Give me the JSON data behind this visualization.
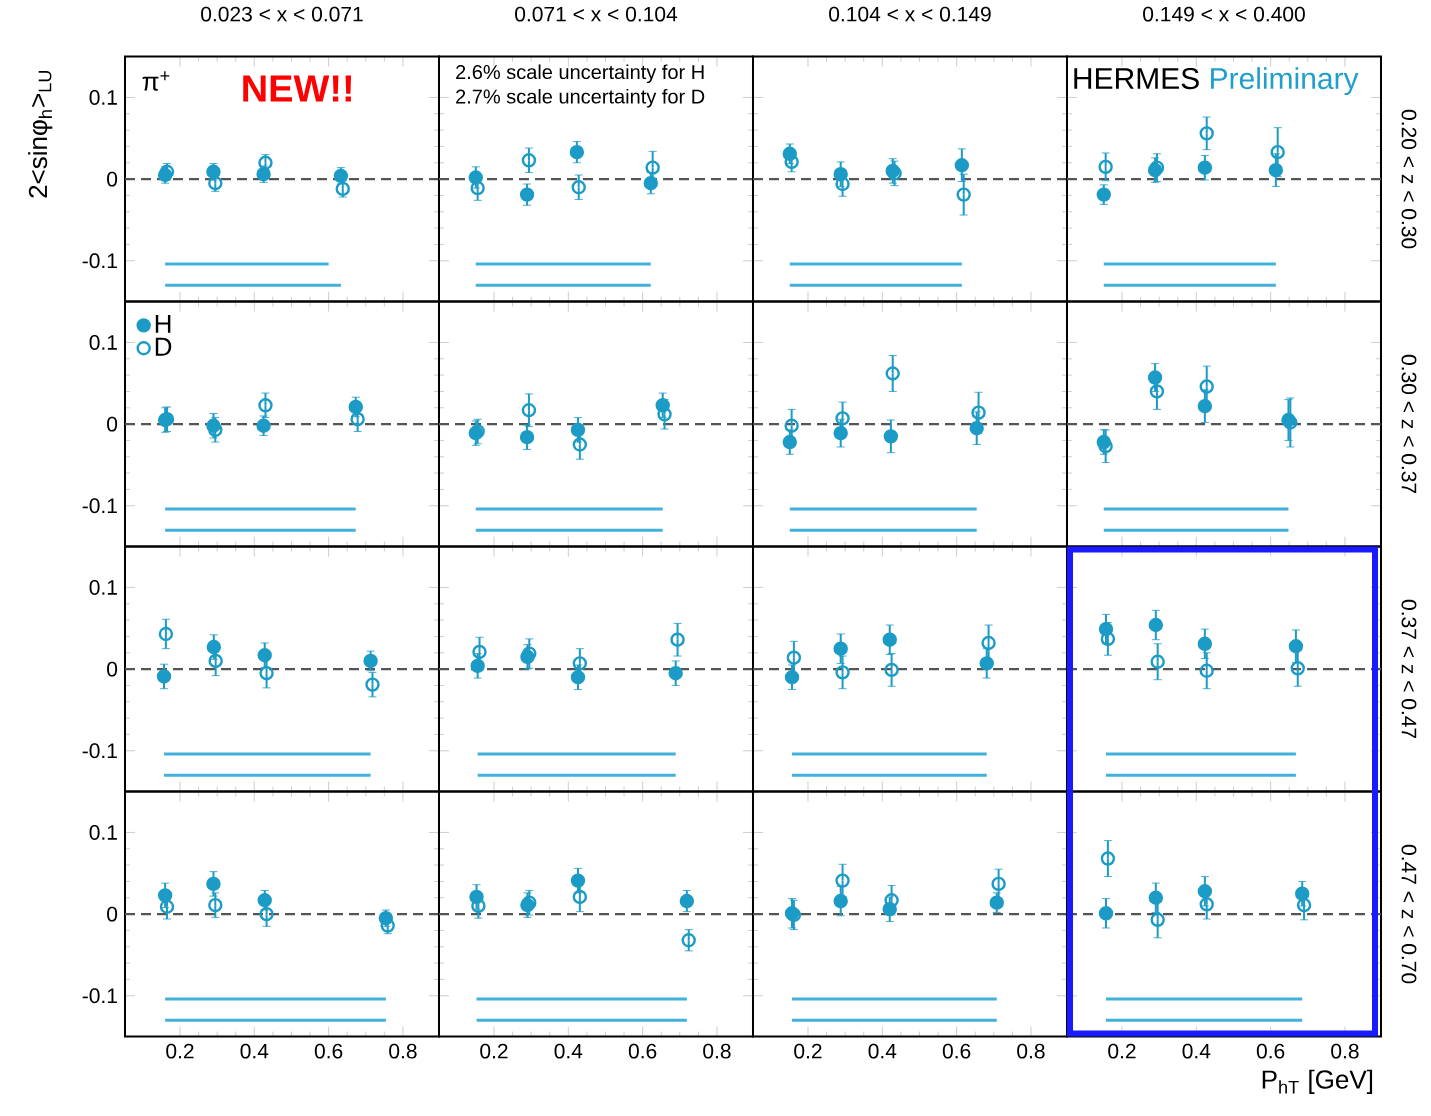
{
  "chart_data": [
    {
      "type": "scatter",
      "title": "0.023  <  x <  0.071",
      "ylabel": "2<sinφ$_{h}$>$_{LU}$",
      "annotations": [
        "π$^{+}$",
        "NEW!!"
      ],
      "xlim": [
        0.052,
        0.897
      ],
      "ylim": [
        -0.15,
        0.15
      ],
      "xticks": [
        0.2,
        0.4,
        0.6,
        0.8
      ],
      "yticks": [
        -0.1,
        0,
        0.1
      ],
      "tick_labels": "y",
      "ref_lines": [
        {
          "axis": "y",
          "value": 0,
          "color": "#555555",
          "line_style": "dashed"
        }
      ],
      "series": [
        {
          "type": "scatter",
          "marker": "circle",
          "color": "#1b9bc5",
          "x": [
            0.16,
            0.29,
            0.425,
            0.633
          ],
          "values": [
            0.005,
            0.009,
            0.006,
            0.004
          ],
          "errors": [
            0.01,
            0.01,
            0.01,
            0.01
          ]
        },
        {
          "type": "scatter",
          "marker": "circle",
          "color": "#1b9bc5",
          "x": [
            0.165,
            0.295,
            0.43,
            0.638
          ],
          "values": [
            0.009,
            -0.005,
            0.02,
            -0.012
          ],
          "errors": [
            0.01,
            0.01,
            0.01,
            0.01
          ]
        },
        {
          "type": "line",
          "color": "#41b0da",
          "x": [
            0.16,
            0.6
          ],
          "values": [
            -0.104,
            -0.104
          ]
        },
        {
          "type": "line",
          "color": "#41b0da",
          "x": [
            0.16,
            0.633
          ],
          "values": [
            -0.13,
            -0.13
          ]
        }
      ]
    },
    {
      "type": "scatter",
      "title": "0.071  <  x  <  0.104",
      "annotations": [
        "2.6% scale uncertainty for H",
        "2.7% scale uncertainty for D"
      ],
      "xlim": [
        0.052,
        0.897
      ],
      "ylim": [
        -0.15,
        0.15
      ],
      "xticks": [
        0.2,
        0.4,
        0.6,
        0.8
      ],
      "yticks": [
        -0.1,
        0,
        0.1
      ],
      "tick_labels": false,
      "ref_lines": [
        {
          "axis": "y",
          "value": 0,
          "color": "#555555",
          "line_style": "dashed"
        }
      ],
      "series": [
        {
          "type": "scatter",
          "marker": "circle",
          "color": "#1b9bc5",
          "x": [
            0.151,
            0.289,
            0.423,
            0.622
          ],
          "values": [
            0.002,
            -0.019,
            0.033,
            -0.005
          ],
          "errors": [
            0.013,
            0.013,
            0.013,
            0.013
          ]
        },
        {
          "type": "scatter",
          "marker": "circle",
          "color": "#1b9bc5",
          "x": [
            0.156,
            0.294,
            0.428,
            0.627
          ],
          "values": [
            -0.011,
            0.023,
            -0.01,
            0.014
          ],
          "errors": [
            0.015,
            0.015,
            0.015,
            0.02
          ]
        },
        {
          "type": "line",
          "color": "#41b0da",
          "x": [
            0.151,
            0.622
          ],
          "values": [
            -0.104,
            -0.104
          ]
        },
        {
          "type": "line",
          "color": "#41b0da",
          "x": [
            0.151,
            0.622
          ],
          "values": [
            -0.13,
            -0.13
          ]
        }
      ]
    },
    {
      "type": "scatter",
      "title": "0.104  <  x  <  0.149",
      "xlim": [
        0.052,
        0.897
      ],
      "ylim": [
        -0.15,
        0.15
      ],
      "xticks": [
        0.2,
        0.4,
        0.6,
        0.8
      ],
      "yticks": [
        -0.1,
        0,
        0.1
      ],
      "tick_labels": false,
      "ref_lines": [
        {
          "axis": "y",
          "value": 0,
          "color": "#555555",
          "line_style": "dashed"
        }
      ],
      "series": [
        {
          "type": "scatter",
          "marker": "circle",
          "color": "#1b9bc5",
          "x": [
            0.151,
            0.288,
            0.428,
            0.614
          ],
          "values": [
            0.031,
            0.006,
            0.01,
            0.017
          ],
          "errors": [
            0.012,
            0.015,
            0.015,
            0.02
          ]
        },
        {
          "type": "scatter",
          "marker": "circle",
          "color": "#1b9bc5",
          "x": [
            0.156,
            0.293,
            0.433,
            0.619
          ],
          "values": [
            0.021,
            -0.006,
            0.007,
            -0.019
          ],
          "errors": [
            0.012,
            0.015,
            0.015,
            0.025
          ]
        },
        {
          "type": "line",
          "color": "#41b0da",
          "x": [
            0.151,
            0.614
          ],
          "values": [
            -0.104,
            -0.104
          ]
        },
        {
          "type": "line",
          "color": "#41b0da",
          "x": [
            0.151,
            0.614
          ],
          "values": [
            -0.13,
            -0.13
          ]
        }
      ]
    },
    {
      "type": "scatter",
      "title": "0.149  <  x  <  0.400",
      "y2label": "0.20  <  z  <  0.30",
      "annotations": [
        "HERMES",
        "Preliminary"
      ],
      "xlim": [
        0.052,
        0.897
      ],
      "ylim": [
        -0.15,
        0.15
      ],
      "xticks": [
        0.2,
        0.4,
        0.6,
        0.8
      ],
      "yticks": [
        -0.1,
        0,
        0.1
      ],
      "tick_labels": false,
      "ref_lines": [
        {
          "axis": "y",
          "value": 0,
          "color": "#555555",
          "line_style": "dashed"
        }
      ],
      "series": [
        {
          "type": "scatter",
          "marker": "circle",
          "color": "#1b9bc5",
          "x": [
            0.151,
            0.289,
            0.423,
            0.614
          ],
          "values": [
            -0.019,
            0.011,
            0.014,
            0.011
          ],
          "errors": [
            0.012,
            0.015,
            0.015,
            0.02
          ]
        },
        {
          "type": "scatter",
          "marker": "circle",
          "color": "#1b9bc5",
          "x": [
            0.156,
            0.294,
            0.428,
            0.619
          ],
          "values": [
            0.015,
            0.014,
            0.056,
            0.033
          ],
          "errors": [
            0.017,
            0.017,
            0.02,
            0.03
          ]
        },
        {
          "type": "line",
          "color": "#41b0da",
          "x": [
            0.151,
            0.614
          ],
          "values": [
            -0.104,
            -0.104
          ]
        },
        {
          "type": "line",
          "color": "#41b0da",
          "x": [
            0.151,
            0.614
          ],
          "values": [
            -0.13,
            -0.13
          ]
        }
      ]
    },
    {
      "type": "scatter",
      "legend": "top left",
      "xlim": [
        0.052,
        0.897
      ],
      "ylim": [
        -0.15,
        0.15
      ],
      "xticks": [
        0.2,
        0.4,
        0.6,
        0.8
      ],
      "yticks": [
        -0.1,
        0,
        0.1
      ],
      "tick_labels": "y",
      "ref_lines": [
        {
          "axis": "y",
          "value": 0,
          "color": "#555555",
          "line_style": "dashed"
        }
      ],
      "series": [
        {
          "name": "H",
          "type": "scatter",
          "marker": "circle",
          "color": "#1b9bc5",
          "x": [
            0.16,
            0.29,
            0.425,
            0.673
          ],
          "values": [
            0.005,
            -0.002,
            -0.002,
            0.021
          ],
          "errors": [
            0.015,
            0.015,
            0.012,
            0.012
          ]
        },
        {
          "name": "D",
          "type": "scatter",
          "marker": "circle",
          "color": "#1b9bc5",
          "x": [
            0.165,
            0.295,
            0.43,
            0.678
          ],
          "values": [
            0.006,
            -0.007,
            0.023,
            0.006
          ],
          "errors": [
            0.015,
            0.015,
            0.015,
            0.015
          ]
        },
        {
          "type": "line",
          "color": "#41b0da",
          "x": [
            0.16,
            0.673
          ],
          "values": [
            -0.104,
            -0.104
          ]
        },
        {
          "type": "line",
          "color": "#41b0da",
          "x": [
            0.16,
            0.673
          ],
          "values": [
            -0.13,
            -0.13
          ]
        }
      ]
    },
    {
      "type": "scatter",
      "xlim": [
        0.052,
        0.897
      ],
      "ylim": [
        -0.15,
        0.15
      ],
      "xticks": [
        0.2,
        0.4,
        0.6,
        0.8
      ],
      "yticks": [
        -0.1,
        0,
        0.1
      ],
      "tick_labels": false,
      "ref_lines": [
        {
          "axis": "y",
          "value": 0,
          "color": "#555555",
          "line_style": "dashed"
        }
      ],
      "series": [
        {
          "type": "scatter",
          "marker": "circle",
          "color": "#1b9bc5",
          "x": [
            0.151,
            0.289,
            0.426,
            0.654
          ],
          "values": [
            -0.011,
            -0.016,
            -0.007,
            0.023
          ],
          "errors": [
            0.015,
            0.015,
            0.015,
            0.015
          ]
        },
        {
          "type": "scatter",
          "marker": "circle",
          "color": "#1b9bc5",
          "x": [
            0.156,
            0.294,
            0.431,
            0.659
          ],
          "values": [
            -0.009,
            0.017,
            -0.025,
            0.012
          ],
          "errors": [
            0.015,
            0.02,
            0.018,
            0.018
          ]
        },
        {
          "type": "line",
          "color": "#41b0da",
          "x": [
            0.151,
            0.654
          ],
          "values": [
            -0.104,
            -0.104
          ]
        },
        {
          "type": "line",
          "color": "#41b0da",
          "x": [
            0.151,
            0.654
          ],
          "values": [
            -0.13,
            -0.13
          ]
        }
      ]
    },
    {
      "type": "scatter",
      "xlim": [
        0.052,
        0.897
      ],
      "ylim": [
        -0.15,
        0.15
      ],
      "xticks": [
        0.2,
        0.4,
        0.6,
        0.8
      ],
      "yticks": [
        -0.1,
        0,
        0.1
      ],
      "tick_labels": false,
      "ref_lines": [
        {
          "axis": "y",
          "value": 0,
          "color": "#555555",
          "line_style": "dashed"
        }
      ],
      "series": [
        {
          "type": "scatter",
          "marker": "circle",
          "color": "#1b9bc5",
          "x": [
            0.151,
            0.288,
            0.423,
            0.654
          ],
          "values": [
            -0.022,
            -0.011,
            -0.015,
            -0.005
          ],
          "errors": [
            0.015,
            0.017,
            0.02,
            0.02
          ]
        },
        {
          "type": "scatter",
          "marker": "circle",
          "color": "#1b9bc5",
          "x": [
            0.156,
            0.293,
            0.428,
            0.659
          ],
          "values": [
            -0.002,
            0.007,
            0.062,
            0.014
          ],
          "errors": [
            0.02,
            0.02,
            0.022,
            0.025
          ]
        },
        {
          "type": "line",
          "color": "#41b0da",
          "x": [
            0.151,
            0.654
          ],
          "values": [
            -0.104,
            -0.104
          ]
        },
        {
          "type": "line",
          "color": "#41b0da",
          "x": [
            0.151,
            0.654
          ],
          "values": [
            -0.13,
            -0.13
          ]
        }
      ]
    },
    {
      "type": "scatter",
      "y2label": "0.30  <  z  <  0.37",
      "xlim": [
        0.052,
        0.897
      ],
      "ylim": [
        -0.15,
        0.15
      ],
      "xticks": [
        0.2,
        0.4,
        0.6,
        0.8
      ],
      "yticks": [
        -0.1,
        0,
        0.1
      ],
      "tick_labels": false,
      "ref_lines": [
        {
          "axis": "y",
          "value": 0,
          "color": "#555555",
          "line_style": "dashed"
        }
      ],
      "series": [
        {
          "type": "scatter",
          "marker": "circle",
          "color": "#1b9bc5",
          "x": [
            0.151,
            0.289,
            0.423,
            0.648
          ],
          "values": [
            -0.022,
            0.057,
            0.022,
            0.005
          ],
          "errors": [
            0.015,
            0.017,
            0.02,
            0.025
          ]
        },
        {
          "type": "scatter",
          "marker": "circle",
          "color": "#1b9bc5",
          "x": [
            0.156,
            0.294,
            0.428,
            0.653
          ],
          "values": [
            -0.027,
            0.04,
            0.046,
            0.002
          ],
          "errors": [
            0.02,
            0.022,
            0.025,
            0.03
          ]
        },
        {
          "type": "line",
          "color": "#41b0da",
          "x": [
            0.151,
            0.648
          ],
          "values": [
            -0.104,
            -0.104
          ]
        },
        {
          "type": "line",
          "color": "#41b0da",
          "x": [
            0.151,
            0.648
          ],
          "values": [
            -0.13,
            -0.13
          ]
        }
      ]
    },
    {
      "type": "scatter",
      "xlim": [
        0.052,
        0.897
      ],
      "ylim": [
        -0.15,
        0.15
      ],
      "xticks": [
        0.2,
        0.4,
        0.6,
        0.8
      ],
      "yticks": [
        -0.1,
        0,
        0.1
      ],
      "tick_labels": "y",
      "ref_lines": [
        {
          "axis": "y",
          "value": 0,
          "color": "#555555",
          "line_style": "dashed"
        }
      ],
      "series": [
        {
          "type": "scatter",
          "marker": "circle",
          "color": "#1b9bc5",
          "x": [
            0.157,
            0.291,
            0.428,
            0.713
          ],
          "values": [
            -0.009,
            0.027,
            0.017,
            0.01
          ],
          "errors": [
            0.015,
            0.015,
            0.015,
            0.012
          ]
        },
        {
          "type": "scatter",
          "marker": "circle",
          "color": "#1b9bc5",
          "x": [
            0.162,
            0.296,
            0.433,
            0.718
          ],
          "values": [
            0.043,
            0.01,
            -0.005,
            -0.019
          ],
          "errors": [
            0.018,
            0.018,
            0.018,
            0.015
          ]
        },
        {
          "type": "line",
          "color": "#41b0da",
          "x": [
            0.157,
            0.713
          ],
          "values": [
            -0.104,
            -0.104
          ]
        },
        {
          "type": "line",
          "color": "#41b0da",
          "x": [
            0.157,
            0.713
          ],
          "values": [
            -0.13,
            -0.13
          ]
        }
      ]
    },
    {
      "type": "scatter",
      "xlim": [
        0.052,
        0.897
      ],
      "ylim": [
        -0.15,
        0.15
      ],
      "xticks": [
        0.2,
        0.4,
        0.6,
        0.8
      ],
      "yticks": [
        -0.1,
        0,
        0.1
      ],
      "tick_labels": false,
      "ref_lines": [
        {
          "axis": "y",
          "value": 0,
          "color": "#555555",
          "line_style": "dashed"
        }
      ],
      "series": [
        {
          "type": "scatter",
          "marker": "circle",
          "color": "#1b9bc5",
          "x": [
            0.156,
            0.29,
            0.426,
            0.689
          ],
          "values": [
            0.004,
            0.015,
            -0.01,
            -0.005
          ],
          "errors": [
            0.015,
            0.015,
            0.015,
            0.015
          ]
        },
        {
          "type": "scatter",
          "marker": "circle",
          "color": "#1b9bc5",
          "x": [
            0.161,
            0.295,
            0.431,
            0.694
          ],
          "values": [
            0.021,
            0.019,
            0.007,
            0.036
          ],
          "errors": [
            0.018,
            0.018,
            0.018,
            0.02
          ]
        },
        {
          "type": "line",
          "color": "#41b0da",
          "x": [
            0.156,
            0.689
          ],
          "values": [
            -0.104,
            -0.104
          ]
        },
        {
          "type": "line",
          "color": "#41b0da",
          "x": [
            0.156,
            0.689
          ],
          "values": [
            -0.13,
            -0.13
          ]
        }
      ]
    },
    {
      "type": "scatter",
      "xlim": [
        0.052,
        0.897
      ],
      "ylim": [
        -0.15,
        0.15
      ],
      "xticks": [
        0.2,
        0.4,
        0.6,
        0.8
      ],
      "yticks": [
        -0.1,
        0,
        0.1
      ],
      "tick_labels": false,
      "ref_lines": [
        {
          "axis": "y",
          "value": 0,
          "color": "#555555",
          "line_style": "dashed"
        }
      ],
      "series": [
        {
          "type": "scatter",
          "marker": "circle",
          "color": "#1b9bc5",
          "x": [
            0.157,
            0.288,
            0.42,
            0.681
          ],
          "values": [
            -0.01,
            0.025,
            0.036,
            0.007
          ],
          "errors": [
            0.015,
            0.018,
            0.018,
            0.018
          ]
        },
        {
          "type": "scatter",
          "marker": "circle",
          "color": "#1b9bc5",
          "x": [
            0.162,
            0.293,
            0.425,
            0.686
          ],
          "values": [
            0.014,
            -0.004,
            -0.001,
            0.032
          ],
          "errors": [
            0.02,
            0.02,
            0.02,
            0.022
          ]
        },
        {
          "type": "line",
          "color": "#41b0da",
          "x": [
            0.157,
            0.681
          ],
          "values": [
            -0.104,
            -0.104
          ]
        },
        {
          "type": "line",
          "color": "#41b0da",
          "x": [
            0.157,
            0.681
          ],
          "values": [
            -0.13,
            -0.13
          ]
        }
      ]
    },
    {
      "type": "scatter",
      "y2label": "0.37  <  z  <  0.47",
      "xlim": [
        0.052,
        0.897
      ],
      "ylim": [
        -0.15,
        0.15
      ],
      "xticks": [
        0.2,
        0.4,
        0.6,
        0.8
      ],
      "yticks": [
        -0.1,
        0,
        0.1
      ],
      "tick_labels": false,
      "ref_lines": [
        {
          "axis": "y",
          "value": 0,
          "color": "#555555",
          "line_style": "dashed"
        }
      ],
      "series": [
        {
          "type": "scatter",
          "marker": "circle",
          "color": "#1b9bc5",
          "x": [
            0.157,
            0.291,
            0.423,
            0.668
          ],
          "values": [
            0.049,
            0.054,
            0.031,
            0.028
          ],
          "errors": [
            0.018,
            0.018,
            0.018,
            0.02
          ]
        },
        {
          "type": "scatter",
          "marker": "circle",
          "color": "#1b9bc5",
          "x": [
            0.162,
            0.296,
            0.428,
            0.673
          ],
          "values": [
            0.037,
            0.009,
            -0.002,
            0.001
          ],
          "errors": [
            0.02,
            0.022,
            0.022,
            0.022
          ]
        },
        {
          "type": "line",
          "color": "#41b0da",
          "x": [
            0.157,
            0.668
          ],
          "values": [
            -0.104,
            -0.104
          ]
        },
        {
          "type": "line",
          "color": "#41b0da",
          "x": [
            0.157,
            0.668
          ],
          "values": [
            -0.13,
            -0.13
          ]
        }
      ]
    },
    {
      "type": "scatter",
      "xlim": [
        0.052,
        0.897
      ],
      "ylim": [
        -0.15,
        0.15
      ],
      "xticks": [
        0.2,
        0.4,
        0.6,
        0.8
      ],
      "yticks": [
        -0.1,
        0,
        0.1
      ],
      "ref_lines": [
        {
          "axis": "y",
          "value": 0,
          "color": "#555555",
          "line_style": "dashed"
        }
      ],
      "series": [
        {
          "type": "scatter",
          "marker": "circle",
          "color": "#1b9bc5",
          "x": [
            0.16,
            0.29,
            0.428,
            0.754
          ],
          "values": [
            0.023,
            0.037,
            0.017,
            -0.005
          ],
          "errors": [
            0.015,
            0.015,
            0.012,
            0.01
          ]
        },
        {
          "type": "scatter",
          "marker": "circle",
          "color": "#1b9bc5",
          "x": [
            0.165,
            0.295,
            0.433,
            0.759
          ],
          "values": [
            0.009,
            0.011,
            0,
            -0.014
          ],
          "errors": [
            0.015,
            0.015,
            0.015,
            0.01
          ]
        },
        {
          "type": "line",
          "color": "#41b0da",
          "x": [
            0.16,
            0.754
          ],
          "values": [
            -0.104,
            -0.104
          ]
        },
        {
          "type": "line",
          "color": "#41b0da",
          "x": [
            0.16,
            0.754
          ],
          "values": [
            -0.13,
            -0.13
          ]
        }
      ]
    },
    {
      "type": "scatter",
      "xlim": [
        0.052,
        0.897
      ],
      "ylim": [
        -0.15,
        0.15
      ],
      "xticks": [
        0.2,
        0.4,
        0.6,
        0.8
      ],
      "yticks": [
        -0.1,
        0,
        0.1
      ],
      "tick_labels": "x",
      "ref_lines": [
        {
          "axis": "y",
          "value": 0,
          "color": "#555555",
          "line_style": "dashed"
        }
      ],
      "series": [
        {
          "type": "scatter",
          "marker": "circle",
          "color": "#1b9bc5",
          "x": [
            0.153,
            0.29,
            0.426,
            0.719
          ],
          "values": [
            0.021,
            0.011,
            0.041,
            0.016
          ],
          "errors": [
            0.015,
            0.015,
            0.015,
            0.013
          ]
        },
        {
          "type": "scatter",
          "marker": "circle",
          "color": "#1b9bc5",
          "x": [
            0.158,
            0.295,
            0.431,
            0.724
          ],
          "values": [
            0.01,
            0.014,
            0.021,
            -0.032
          ],
          "errors": [
            0.015,
            0.015,
            0.018,
            0.013
          ]
        },
        {
          "type": "line",
          "color": "#41b0da",
          "x": [
            0.153,
            0.719
          ],
          "values": [
            -0.104,
            -0.104
          ]
        },
        {
          "type": "line",
          "color": "#41b0da",
          "x": [
            0.153,
            0.719
          ],
          "values": [
            -0.13,
            -0.13
          ]
        }
      ]
    },
    {
      "type": "scatter",
      "xlim": [
        0.052,
        0.897
      ],
      "ylim": [
        -0.15,
        0.15
      ],
      "xticks": [
        0.2,
        0.4,
        0.6,
        0.8
      ],
      "yticks": [
        -0.1,
        0,
        0.1
      ],
      "tick_labels": "x",
      "ref_lines": [
        {
          "axis": "y",
          "value": 0,
          "color": "#555555",
          "line_style": "dashed"
        }
      ],
      "series": [
        {
          "type": "scatter",
          "marker": "circle",
          "color": "#1b9bc5",
          "x": [
            0.157,
            0.288,
            0.42,
            0.708
          ],
          "values": [
            0.001,
            0.016,
            0.006,
            0.014
          ],
          "errors": [
            0.018,
            0.018,
            0.015,
            0.012
          ]
        },
        {
          "type": "scatter",
          "marker": "circle",
          "color": "#1b9bc5",
          "x": [
            0.162,
            0.293,
            0.425,
            0.713
          ],
          "values": [
            -0.001,
            0.041,
            0.017,
            0.037
          ],
          "errors": [
            0.018,
            0.02,
            0.018,
            0.018
          ]
        },
        {
          "type": "line",
          "color": "#41b0da",
          "x": [
            0.157,
            0.708
          ],
          "values": [
            -0.104,
            -0.104
          ]
        },
        {
          "type": "line",
          "color": "#41b0da",
          "x": [
            0.157,
            0.708
          ],
          "values": [
            -0.13,
            -0.13
          ]
        }
      ]
    },
    {
      "type": "scatter",
      "xlabel": "P$_{hT}$ [GeV]",
      "y2label": "0.47  <  z  <  0.70",
      "xlim": [
        0.052,
        0.897
      ],
      "ylim": [
        -0.15,
        0.15
      ],
      "xticks": [
        0.2,
        0.4,
        0.6,
        0.8
      ],
      "yticks": [
        -0.1,
        0,
        0.1
      ],
      "tick_labels": "x",
      "ref_lines": [
        {
          "axis": "y",
          "value": 0,
          "color": "#555555",
          "line_style": "dashed"
        }
      ],
      "series": [
        {
          "type": "scatter",
          "marker": "circle",
          "color": "#1b9bc5",
          "x": [
            0.157,
            0.291,
            0.423,
            0.685
          ],
          "values": [
            0.001,
            0.02,
            0.028,
            0.025
          ],
          "errors": [
            0.018,
            0.018,
            0.018,
            0.015
          ]
        },
        {
          "type": "scatter",
          "marker": "circle",
          "color": "#1b9bc5",
          "x": [
            0.162,
            0.296,
            0.428,
            0.69
          ],
          "values": [
            0.068,
            -0.007,
            0.012,
            0.011
          ],
          "errors": [
            0.022,
            0.022,
            0.018,
            0.018
          ]
        },
        {
          "type": "line",
          "color": "#41b0da",
          "x": [
            0.157,
            0.685
          ],
          "values": [
            -0.104,
            -0.104
          ]
        },
        {
          "type": "line",
          "color": "#41b0da",
          "x": [
            0.157,
            0.685
          ],
          "values": [
            -0.13,
            -0.13
          ]
        }
      ]
    }
  ]
}
